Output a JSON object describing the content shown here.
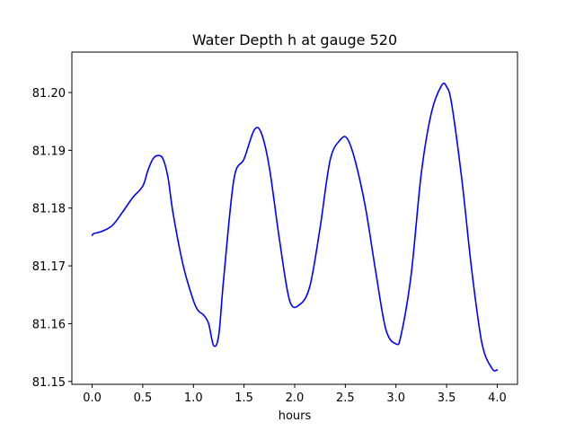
{
  "chart_data": {
    "type": "line",
    "title": "Water Depth h at gauge 520",
    "xlabel": "hours",
    "ylabel": "",
    "xlim": [
      -0.2,
      4.2
    ],
    "ylim": [
      81.1495,
      81.207
    ],
    "xticks": [
      0.0,
      0.5,
      1.0,
      1.5,
      2.0,
      2.5,
      3.0,
      3.5,
      4.0
    ],
    "xtick_labels": [
      "0.0",
      "0.5",
      "1.0",
      "1.5",
      "2.0",
      "2.5",
      "3.0",
      "3.5",
      "4.0"
    ],
    "yticks": [
      81.15,
      81.16,
      81.17,
      81.18,
      81.19,
      81.2
    ],
    "ytick_labels": [
      "81.15",
      "81.16",
      "81.17",
      "81.18",
      "81.19",
      "81.20"
    ],
    "grid": false,
    "series": [
      {
        "color": "#0000ff",
        "x": [
          0.0,
          0.02,
          0.1,
          0.2,
          0.3,
          0.4,
          0.5,
          0.55,
          0.6,
          0.65,
          0.7,
          0.75,
          0.8,
          0.9,
          1.0,
          1.05,
          1.1,
          1.15,
          1.2,
          1.25,
          1.3,
          1.4,
          1.5,
          1.6,
          1.67,
          1.75,
          1.85,
          1.95,
          2.05,
          2.15,
          2.25,
          2.35,
          2.45,
          2.52,
          2.6,
          2.7,
          2.8,
          2.9,
          3.0,
          3.05,
          3.15,
          3.25,
          3.35,
          3.45,
          3.5,
          3.55,
          3.65,
          3.75,
          3.85,
          3.95,
          4.0
        ],
        "y": [
          81.1753,
          81.1756,
          81.176,
          81.177,
          81.1793,
          81.1818,
          81.1838,
          81.1865,
          81.1885,
          81.1891,
          81.1885,
          81.1852,
          81.179,
          81.17,
          81.164,
          81.1622,
          81.1615,
          81.16,
          81.1562,
          81.158,
          81.168,
          81.185,
          81.1885,
          81.1935,
          81.193,
          81.187,
          81.1745,
          81.164,
          81.1633,
          81.1665,
          81.1765,
          81.1883,
          81.1918,
          81.192,
          81.188,
          81.18,
          81.169,
          81.159,
          81.1565,
          81.158,
          81.1685,
          81.186,
          81.1965,
          81.2012,
          81.201,
          81.198,
          81.185,
          81.169,
          81.1565,
          81.1522,
          81.152
        ]
      }
    ]
  }
}
